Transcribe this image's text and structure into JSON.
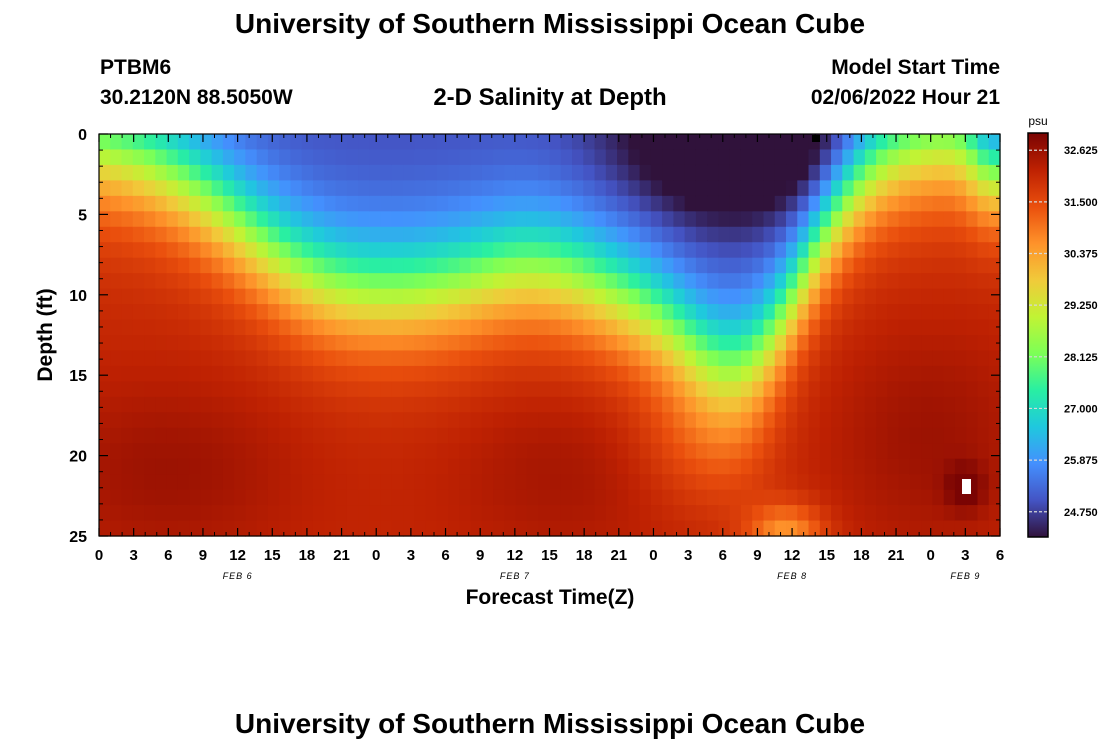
{
  "header": {
    "title": "University of Southern Mississippi Ocean Cube",
    "station_id": "PTBM6",
    "coordinates": "30.2120N  88.5050W",
    "subtitle": "2-D Salinity at Depth",
    "model_start_label": "Model Start Time",
    "model_start_value": "02/06/2022 Hour 21"
  },
  "footer": {
    "title": "University of Southern Mississippi Ocean Cube"
  },
  "chart_data": {
    "type": "heatmap",
    "title": "2-D Salinity at Depth",
    "xlabel": "Forecast Time(Z)",
    "ylabel": "Depth (ft)",
    "x_tick_labels": [
      "0",
      "3",
      "6",
      "9",
      "12",
      "15",
      "18",
      "21",
      "0",
      "3",
      "6",
      "9",
      "12",
      "15",
      "18",
      "21",
      "0",
      "3",
      "6",
      "9",
      "12",
      "15",
      "18",
      "21",
      "0",
      "3",
      "6"
    ],
    "day_labels": [
      {
        "label": "FEB 6",
        "tick_index": 4
      },
      {
        "label": "FEB 7",
        "tick_index": 12
      },
      {
        "label": "FEB 8",
        "tick_index": 20
      },
      {
        "label": "FEB 9",
        "tick_index": 25
      }
    ],
    "y_ticks": [
      0,
      5,
      10,
      15,
      20,
      25
    ],
    "ylim": [
      25,
      0
    ],
    "x_range_hours": [
      0,
      78
    ],
    "colorbar": {
      "unit": "psu",
      "ticks": [
        "32.625",
        "31.500",
        "30.375",
        "29.250",
        "28.125",
        "27.000",
        "25.875",
        "24.750"
      ],
      "range": [
        24.2,
        33.0
      ],
      "colors": [
        "#30123b",
        "#4454c4",
        "#4490fe",
        "#1fc8de",
        "#29efa2",
        "#7dff56",
        "#c1f334",
        "#f1ca3a",
        "#fe922a",
        "#ea4f0d",
        "#be2102",
        "#7a0403"
      ]
    },
    "grid_columns": 80,
    "grid_rows": 26,
    "salinity_grid_description_psu": {
      "surface_min": 24.5,
      "bottom_max": 32.4,
      "dark_low_pocket": {
        "center_hour": 55,
        "depth_ft": 0,
        "value": 24.6
      },
      "high_patch": {
        "center_hour": 75,
        "depth_ft": 22,
        "value": 32.6
      }
    }
  }
}
